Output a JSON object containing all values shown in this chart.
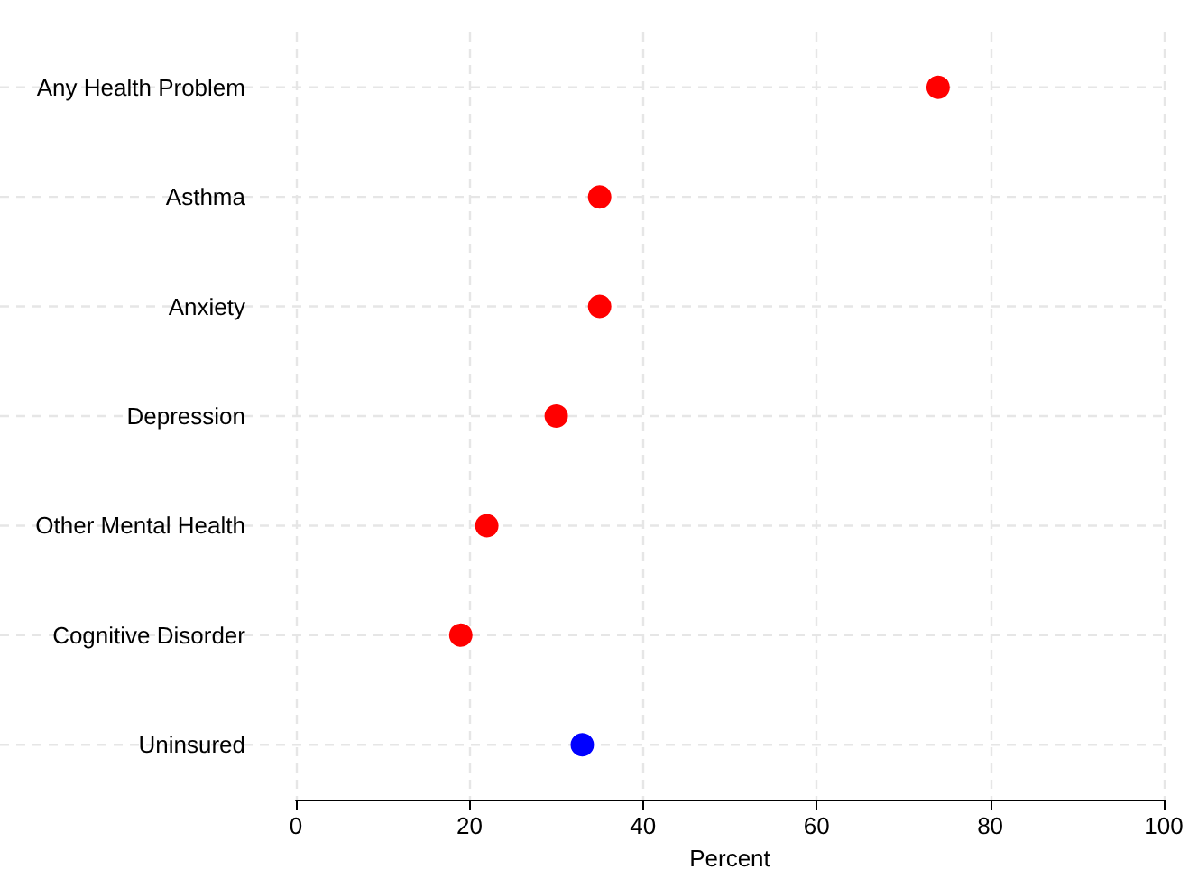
{
  "chart_data": {
    "type": "scatter",
    "orientation": "horizontal",
    "xlabel": "Percent",
    "categories": [
      "Any Health Problem",
      "Asthma",
      "Anxiety",
      "Depression",
      "Other Mental Health",
      "Cognitive Disorder",
      "Uninsured"
    ],
    "values": [
      74,
      35,
      35,
      30,
      22,
      19,
      33
    ],
    "colors": [
      "#ff0000",
      "#ff0000",
      "#ff0000",
      "#ff0000",
      "#ff0000",
      "#ff0000",
      "#0000ff"
    ],
    "xlim": [
      0,
      100
    ],
    "xticks": [
      0,
      20,
      40,
      60,
      80,
      100
    ],
    "grid": true,
    "marker": "circle"
  }
}
